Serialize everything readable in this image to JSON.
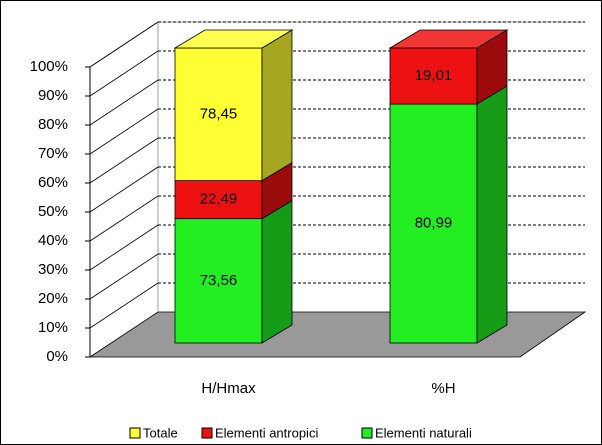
{
  "chart_data": {
    "type": "bar",
    "stacking": "percent",
    "categories": [
      "H/Hmax",
      "%H"
    ],
    "series": [
      {
        "name": "Elementi naturali",
        "color": "#22ee22",
        "values": [
          73.56,
          80.99
        ],
        "value_labels": [
          "73,56",
          "80,99"
        ]
      },
      {
        "name": "Elementi antropici",
        "color": "#ee1111",
        "values": [
          22.49,
          19.01
        ],
        "value_labels": [
          "22,49",
          "19,01"
        ]
      },
      {
        "name": "Totale",
        "color": "#ffff33",
        "values": [
          78.45,
          null
        ],
        "value_labels": [
          "78,45",
          null
        ]
      }
    ],
    "ylim": [
      0,
      100
    ],
    "yticks": [
      {
        "value": 0,
        "label": "0%"
      },
      {
        "value": 10,
        "label": "10%"
      },
      {
        "value": 20,
        "label": "20%"
      },
      {
        "value": 30,
        "label": "30%"
      },
      {
        "value": 40,
        "label": "40%"
      },
      {
        "value": 50,
        "label": "50%"
      },
      {
        "value": 60,
        "label": "60%"
      },
      {
        "value": 70,
        "label": "70%"
      },
      {
        "value": 80,
        "label": "80%"
      },
      {
        "value": 90,
        "label": "90%"
      },
      {
        "value": 100,
        "label": "100%"
      }
    ],
    "grid": true,
    "legend": "bottom"
  }
}
